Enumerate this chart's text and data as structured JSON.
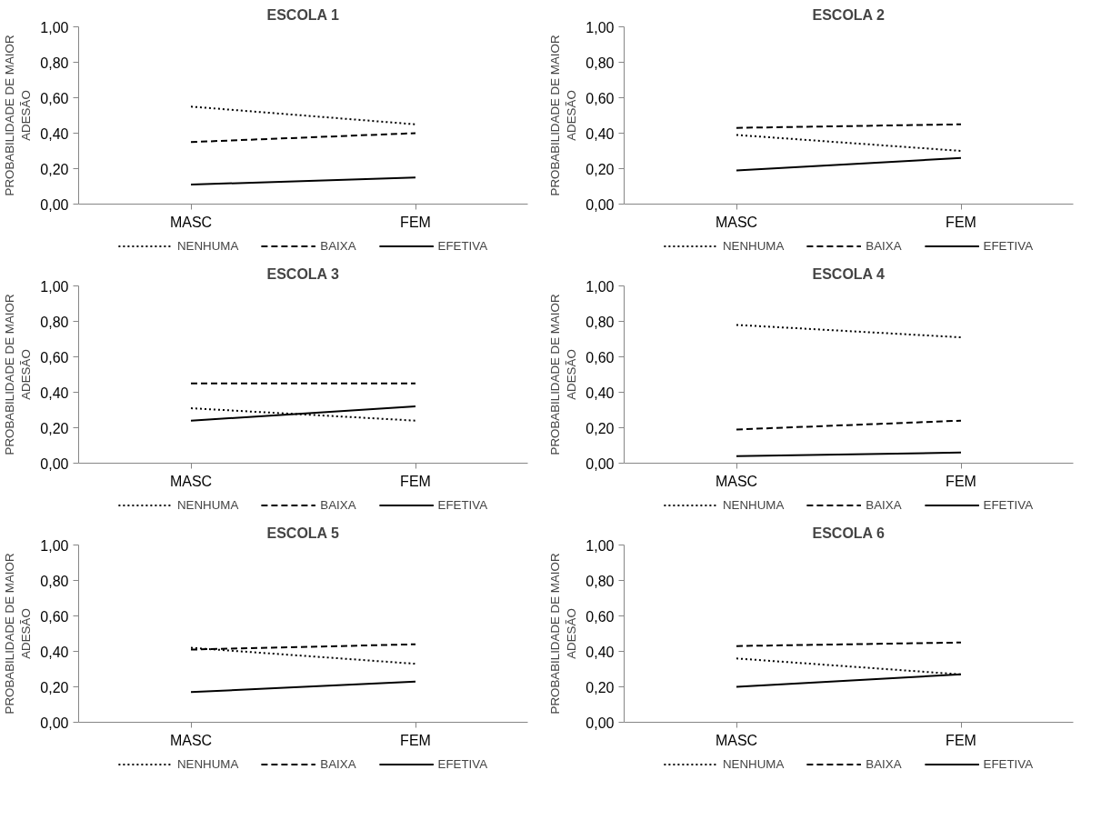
{
  "chart_data": [
    {
      "type": "line",
      "title": "ESCOLA 1",
      "ylabel": "PROBABILIDADE DE MAIOR\nADESÃO",
      "categories": [
        "MASC",
        "FEM"
      ],
      "ylim": [
        0,
        1
      ],
      "yticks": [
        {
          "value": 0,
          "label": "0,00"
        },
        {
          "value": 0.2,
          "label": "0,20"
        },
        {
          "value": 0.4,
          "label": "0,40"
        },
        {
          "value": 0.6,
          "label": "0,60"
        },
        {
          "value": 0.8,
          "label": "0,80"
        },
        {
          "value": 1,
          "label": "1,00"
        }
      ],
      "grid": false,
      "legend": "bottom",
      "marker": "none",
      "series": [
        {
          "name": "NENHUMA",
          "color": "#000000",
          "line_style": "dotted",
          "values": [
            0.55,
            0.45
          ]
        },
        {
          "name": "BAIXA",
          "color": "#000000",
          "line_style": "dashed",
          "values": [
            0.35,
            0.4
          ]
        },
        {
          "name": "EFETIVA",
          "color": "#000000",
          "line_style": "solid",
          "values": [
            0.11,
            0.15
          ]
        }
      ]
    },
    {
      "type": "line",
      "title": "ESCOLA 2",
      "ylabel": "PROBABILIDADE DE MAIOR\nADESÃO",
      "categories": [
        "MASC",
        "FEM"
      ],
      "ylim": [
        0,
        1
      ],
      "yticks": [
        {
          "value": 0,
          "label": "0,00"
        },
        {
          "value": 0.2,
          "label": "0,20"
        },
        {
          "value": 0.4,
          "label": "0,40"
        },
        {
          "value": 0.6,
          "label": "0,60"
        },
        {
          "value": 0.8,
          "label": "0,80"
        },
        {
          "value": 1,
          "label": "1,00"
        }
      ],
      "grid": false,
      "legend": "bottom",
      "marker": "none",
      "series": [
        {
          "name": "NENHUMA",
          "color": "#000000",
          "line_style": "dotted",
          "values": [
            0.39,
            0.3
          ]
        },
        {
          "name": "BAIXA",
          "color": "#000000",
          "line_style": "dashed",
          "values": [
            0.43,
            0.45
          ]
        },
        {
          "name": "EFETIVA",
          "color": "#000000",
          "line_style": "solid",
          "values": [
            0.19,
            0.26
          ]
        }
      ]
    },
    {
      "type": "line",
      "title": "ESCOLA 3",
      "ylabel": "PROBABILIDADE DE MAIOR\nADESÃO",
      "categories": [
        "MASC",
        "FEM"
      ],
      "ylim": [
        0,
        1
      ],
      "yticks": [
        {
          "value": 0,
          "label": "0,00"
        },
        {
          "value": 0.2,
          "label": "0,20"
        },
        {
          "value": 0.4,
          "label": "0,40"
        },
        {
          "value": 0.6,
          "label": "0,60"
        },
        {
          "value": 0.8,
          "label": "0,80"
        },
        {
          "value": 1,
          "label": "1,00"
        }
      ],
      "grid": false,
      "legend": "bottom",
      "marker": "none",
      "series": [
        {
          "name": "NENHUMA",
          "color": "#000000",
          "line_style": "dotted",
          "values": [
            0.31,
            0.24
          ]
        },
        {
          "name": "BAIXA",
          "color": "#000000",
          "line_style": "dashed",
          "values": [
            0.45,
            0.45
          ]
        },
        {
          "name": "EFETIVA",
          "color": "#000000",
          "line_style": "solid",
          "values": [
            0.24,
            0.32
          ]
        }
      ]
    },
    {
      "type": "line",
      "title": "ESCOLA 4",
      "ylabel": "PROBABILIDADE DE MAIOR\nADESÃO",
      "categories": [
        "MASC",
        "FEM"
      ],
      "ylim": [
        0,
        1
      ],
      "yticks": [
        {
          "value": 0,
          "label": "0,00"
        },
        {
          "value": 0.2,
          "label": "0,20"
        },
        {
          "value": 0.4,
          "label": "0,40"
        },
        {
          "value": 0.6,
          "label": "0,60"
        },
        {
          "value": 0.8,
          "label": "0,80"
        },
        {
          "value": 1,
          "label": "1,00"
        }
      ],
      "grid": false,
      "legend": "bottom",
      "marker": "none",
      "series": [
        {
          "name": "NENHUMA",
          "color": "#000000",
          "line_style": "dotted",
          "values": [
            0.78,
            0.71
          ]
        },
        {
          "name": "BAIXA",
          "color": "#000000",
          "line_style": "dashed",
          "values": [
            0.19,
            0.24
          ]
        },
        {
          "name": "EFETIVA",
          "color": "#000000",
          "line_style": "solid",
          "values": [
            0.04,
            0.06
          ]
        }
      ]
    },
    {
      "type": "line",
      "title": "ESCOLA 5",
      "ylabel": "PROBABILIDADE DE MAIOR\nADESÃO",
      "categories": [
        "MASC",
        "FEM"
      ],
      "ylim": [
        0,
        1
      ],
      "yticks": [
        {
          "value": 0,
          "label": "0,00"
        },
        {
          "value": 0.2,
          "label": "0,20"
        },
        {
          "value": 0.4,
          "label": "0,40"
        },
        {
          "value": 0.6,
          "label": "0,60"
        },
        {
          "value": 0.8,
          "label": "0,80"
        },
        {
          "value": 1,
          "label": "1,00"
        }
      ],
      "grid": false,
      "legend": "bottom",
      "marker": "none",
      "series": [
        {
          "name": "NENHUMA",
          "color": "#000000",
          "line_style": "dotted",
          "values": [
            0.42,
            0.33
          ]
        },
        {
          "name": "BAIXA",
          "color": "#000000",
          "line_style": "dashed",
          "values": [
            0.41,
            0.44
          ]
        },
        {
          "name": "EFETIVA",
          "color": "#000000",
          "line_style": "solid",
          "values": [
            0.17,
            0.23
          ]
        }
      ]
    },
    {
      "type": "line",
      "title": "ESCOLA 6",
      "ylabel": "PROBABILIDADE DE MAIOR\nADESÃO",
      "categories": [
        "MASC",
        "FEM"
      ],
      "ylim": [
        0,
        1
      ],
      "yticks": [
        {
          "value": 0,
          "label": "0,00"
        },
        {
          "value": 0.2,
          "label": "0,20"
        },
        {
          "value": 0.4,
          "label": "0,40"
        },
        {
          "value": 0.6,
          "label": "0,60"
        },
        {
          "value": 0.8,
          "label": "0,80"
        },
        {
          "value": 1,
          "label": "1,00"
        }
      ],
      "grid": false,
      "legend": "bottom",
      "marker": "none",
      "series": [
        {
          "name": "NENHUMA",
          "color": "#000000",
          "line_style": "dotted",
          "values": [
            0.36,
            0.27
          ]
        },
        {
          "name": "BAIXA",
          "color": "#000000",
          "line_style": "dashed",
          "values": [
            0.43,
            0.45
          ]
        },
        {
          "name": "EFETIVA",
          "color": "#000000",
          "line_style": "solid",
          "values": [
            0.2,
            0.27
          ]
        }
      ]
    }
  ]
}
